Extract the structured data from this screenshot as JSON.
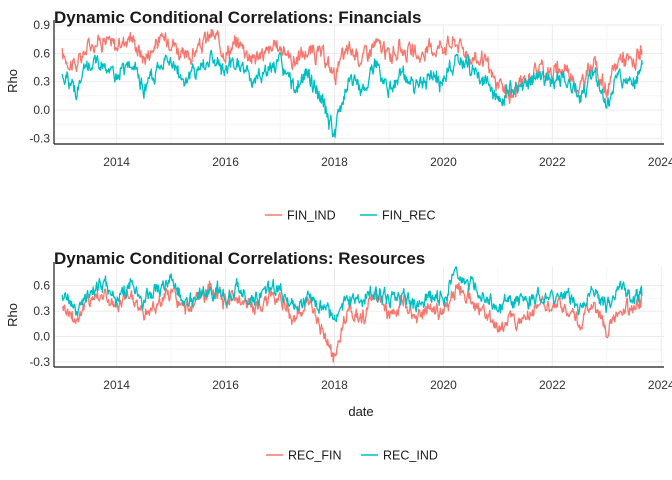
{
  "chart_data": [
    {
      "type": "line",
      "title": "Dynamic Conditional Correlations: Financials",
      "xlabel": "",
      "ylabel": "Rho",
      "xlim": [
        2012.85,
        2024.05
      ],
      "ylim": [
        -0.36,
        0.9
      ],
      "x_ticks": [
        2014,
        2016,
        2018,
        2020,
        2022,
        2024
      ],
      "x_tick_labels": [
        "2014",
        "2016",
        "2018",
        "2020",
        "2022",
        "2024"
      ],
      "y_ticks": [
        -0.3,
        0.0,
        0.3,
        0.6,
        0.9
      ],
      "y_tick_labels": [
        "-0.3",
        "0.0",
        "0.3",
        "0.6",
        "0.9"
      ],
      "grid": true,
      "legend_position": "bottom",
      "series": [
        {
          "name": "FIN_IND",
          "color": "#F8766D",
          "x": [
            2013.0,
            2013.25,
            2013.5,
            2013.75,
            2014.0,
            2014.25,
            2014.5,
            2014.75,
            2015.0,
            2015.25,
            2015.5,
            2015.75,
            2016.0,
            2016.25,
            2016.5,
            2016.75,
            2017.0,
            2017.25,
            2017.5,
            2017.75,
            2018.0,
            2018.25,
            2018.5,
            2018.75,
            2019.0,
            2019.25,
            2019.5,
            2019.75,
            2020.0,
            2020.25,
            2020.5,
            2020.75,
            2021.0,
            2021.25,
            2021.5,
            2021.75,
            2022.0,
            2022.25,
            2022.5,
            2022.75,
            2023.0,
            2023.25,
            2023.5,
            2023.65
          ],
          "values": [
            0.58,
            0.46,
            0.7,
            0.76,
            0.66,
            0.8,
            0.55,
            0.72,
            0.78,
            0.52,
            0.65,
            0.8,
            0.62,
            0.72,
            0.56,
            0.6,
            0.68,
            0.52,
            0.62,
            0.58,
            0.38,
            0.63,
            0.55,
            0.7,
            0.58,
            0.66,
            0.55,
            0.64,
            0.7,
            0.72,
            0.57,
            0.5,
            0.25,
            0.15,
            0.32,
            0.46,
            0.38,
            0.46,
            0.22,
            0.52,
            0.18,
            0.58,
            0.48,
            0.6
          ]
        },
        {
          "name": "FIN_REC",
          "color": "#00BFC4",
          "x": [
            2013.0,
            2013.25,
            2013.5,
            2013.75,
            2014.0,
            2014.25,
            2014.5,
            2014.75,
            2015.0,
            2015.25,
            2015.5,
            2015.75,
            2016.0,
            2016.25,
            2016.5,
            2016.75,
            2017.0,
            2017.25,
            2017.5,
            2017.75,
            2018.0,
            2018.25,
            2018.5,
            2018.75,
            2019.0,
            2019.25,
            2019.5,
            2019.75,
            2020.0,
            2020.25,
            2020.5,
            2020.75,
            2021.0,
            2021.25,
            2021.5,
            2021.75,
            2022.0,
            2022.25,
            2022.5,
            2022.75,
            2023.0,
            2023.25,
            2023.5,
            2023.65
          ],
          "values": [
            0.38,
            0.2,
            0.45,
            0.52,
            0.32,
            0.5,
            0.25,
            0.4,
            0.52,
            0.3,
            0.44,
            0.55,
            0.4,
            0.48,
            0.32,
            0.42,
            0.5,
            0.2,
            0.38,
            0.14,
            -0.28,
            0.35,
            0.2,
            0.48,
            0.24,
            0.42,
            0.2,
            0.38,
            0.28,
            0.6,
            0.45,
            0.28,
            0.1,
            0.2,
            0.25,
            0.4,
            0.3,
            0.38,
            0.14,
            0.4,
            0.05,
            0.38,
            0.3,
            0.48
          ]
        }
      ]
    },
    {
      "type": "line",
      "title": "Dynamic Conditional Correlations: Resources",
      "xlabel": "date",
      "ylabel": "Rho",
      "xlim": [
        2012.85,
        2024.05
      ],
      "ylim": [
        -0.36,
        0.82
      ],
      "x_ticks": [
        2014,
        2016,
        2018,
        2020,
        2022,
        2024
      ],
      "x_tick_labels": [
        "2014",
        "2016",
        "2018",
        "2020",
        "2022",
        "2024"
      ],
      "y_ticks": [
        -0.3,
        0.0,
        0.3,
        0.6
      ],
      "y_tick_labels": [
        "-0.3",
        "0.0",
        "0.3",
        "0.6"
      ],
      "grid": true,
      "legend_position": "bottom",
      "series": [
        {
          "name": "REC_FIN",
          "color": "#F8766D",
          "x": [
            2013.0,
            2013.25,
            2013.5,
            2013.75,
            2014.0,
            2014.25,
            2014.5,
            2014.75,
            2015.0,
            2015.25,
            2015.5,
            2015.75,
            2016.0,
            2016.25,
            2016.5,
            2016.75,
            2017.0,
            2017.25,
            2017.5,
            2017.75,
            2018.0,
            2018.25,
            2018.5,
            2018.75,
            2019.0,
            2019.25,
            2019.5,
            2019.75,
            2020.0,
            2020.25,
            2020.5,
            2020.75,
            2021.0,
            2021.25,
            2021.5,
            2021.75,
            2022.0,
            2022.25,
            2022.5,
            2022.75,
            2023.0,
            2023.25,
            2023.5,
            2023.65
          ],
          "values": [
            0.38,
            0.2,
            0.45,
            0.52,
            0.32,
            0.5,
            0.25,
            0.4,
            0.52,
            0.3,
            0.44,
            0.55,
            0.4,
            0.48,
            0.32,
            0.42,
            0.5,
            0.2,
            0.38,
            0.14,
            -0.28,
            0.35,
            0.2,
            0.48,
            0.24,
            0.42,
            0.2,
            0.38,
            0.28,
            0.6,
            0.45,
            0.28,
            0.1,
            0.2,
            0.25,
            0.4,
            0.3,
            0.38,
            0.14,
            0.4,
            0.05,
            0.38,
            0.3,
            0.48
          ]
        },
        {
          "name": "REC_IND",
          "color": "#00BFC4",
          "x": [
            2013.0,
            2013.25,
            2013.5,
            2013.75,
            2014.0,
            2014.25,
            2014.5,
            2014.75,
            2015.0,
            2015.25,
            2015.5,
            2015.75,
            2016.0,
            2016.25,
            2016.5,
            2016.75,
            2017.0,
            2017.25,
            2017.5,
            2017.75,
            2018.0,
            2018.25,
            2018.5,
            2018.75,
            2019.0,
            2019.25,
            2019.5,
            2019.75,
            2020.0,
            2020.25,
            2020.5,
            2020.75,
            2021.0,
            2021.25,
            2021.5,
            2021.75,
            2022.0,
            2022.25,
            2022.5,
            2022.75,
            2023.0,
            2023.25,
            2023.5,
            2023.65
          ],
          "values": [
            0.46,
            0.32,
            0.52,
            0.62,
            0.45,
            0.58,
            0.4,
            0.55,
            0.66,
            0.4,
            0.5,
            0.55,
            0.48,
            0.55,
            0.42,
            0.5,
            0.55,
            0.38,
            0.45,
            0.4,
            0.2,
            0.45,
            0.4,
            0.55,
            0.42,
            0.5,
            0.38,
            0.48,
            0.45,
            0.78,
            0.58,
            0.5,
            0.35,
            0.38,
            0.42,
            0.5,
            0.42,
            0.5,
            0.3,
            0.55,
            0.32,
            0.62,
            0.45,
            0.5
          ]
        }
      ]
    }
  ]
}
